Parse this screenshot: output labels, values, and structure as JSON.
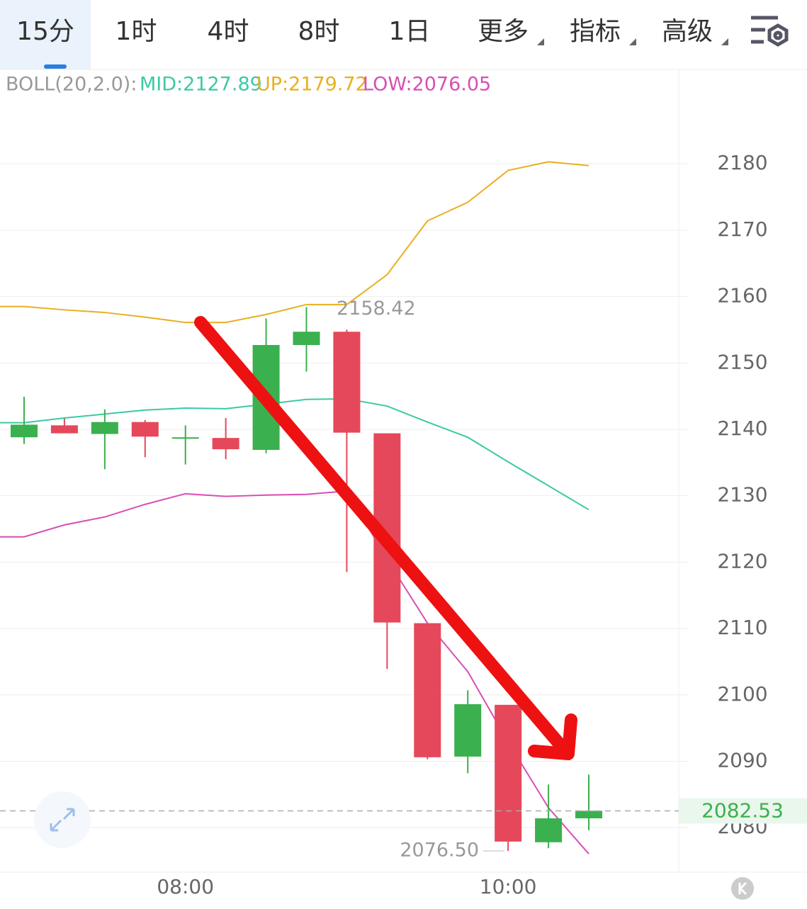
{
  "tabs": [
    "15分",
    "1时",
    "4时",
    "8时",
    "1日",
    "更多",
    "指标",
    "高级"
  ],
  "header": {
    "indicator": "BOLL(20,2.0):",
    "mid": "MID:2127.89",
    "up": "UP:2179.72",
    "low": "LOW:2076.05"
  },
  "chart_data": {
    "type": "candlestick",
    "categories": [
      null,
      null,
      null,
      null,
      "08:00",
      null,
      null,
      null,
      null,
      null,
      null,
      null,
      "10:00",
      null,
      null
    ],
    "open": [
      2138.8,
      2140.6,
      2139.3,
      2141.1,
      2138.8,
      2138.7,
      2136.9,
      2152.7,
      2154.7,
      2139.4,
      2110.8,
      2090.7,
      2098.5,
      2077.8,
      2081.4
    ],
    "high": [
      2144.9,
      2141.6,
      2143.0,
      2141.4,
      2140.6,
      2141.7,
      2156.7,
      2158.42,
      2155.0,
      2139.4,
      2110.8,
      2100.7,
      2098.5,
      2086.5,
      2088.0
    ],
    "low": [
      2137.8,
      2139.4,
      2134.0,
      2135.8,
      2134.7,
      2135.5,
      2136.4,
      2148.7,
      2118.5,
      2103.9,
      2090.3,
      2088.2,
      2076.5,
      2076.9,
      2079.6
    ],
    "close": [
      2140.7,
      2139.4,
      2141.1,
      2138.9,
      2138.8,
      2137.0,
      2152.7,
      2154.7,
      2139.5,
      2110.9,
      2090.6,
      2098.6,
      2077.9,
      2081.4,
      2082.53
    ],
    "up_color": "#3ab04f",
    "down_color": "#e5485a",
    "overlays": [
      {
        "color": "#e8b020",
        "values": [
          2158.5,
          2158.0,
          2157.6,
          2156.9,
          2156.1,
          2156.1,
          2157.3,
          2158.8,
          2158.8,
          2163.3,
          2171.4,
          2174.2,
          2179.0,
          2180.3,
          2179.72
        ]
      },
      {
        "color": "#3cc9a5",
        "values": [
          2141.0,
          2141.7,
          2142.3,
          2142.9,
          2143.2,
          2143.1,
          2143.8,
          2144.5,
          2144.6,
          2143.5,
          2141.1,
          2138.8,
          2135.1,
          2131.5,
          2127.89
        ]
      },
      {
        "color": "#d84fb4",
        "values": [
          2123.8,
          2125.6,
          2126.8,
          2128.7,
          2130.3,
          2129.9,
          2130.1,
          2130.2,
          2130.7,
          2120.4,
          2110.8,
          2103.5,
          2092.9,
          2083.0,
          2076.05
        ]
      }
    ],
    "max_label": 2158.42,
    "min_label": {
      "value": 2076.5,
      "label": "2076.50"
    },
    "last_price": 2082.53,
    "ylim": [
      2073.4,
      2194
    ],
    "yticks": [
      2080,
      2090,
      2100,
      2110,
      2120,
      2130,
      2140,
      2150,
      2160,
      2170,
      2180
    ],
    "grid": true
  }
}
